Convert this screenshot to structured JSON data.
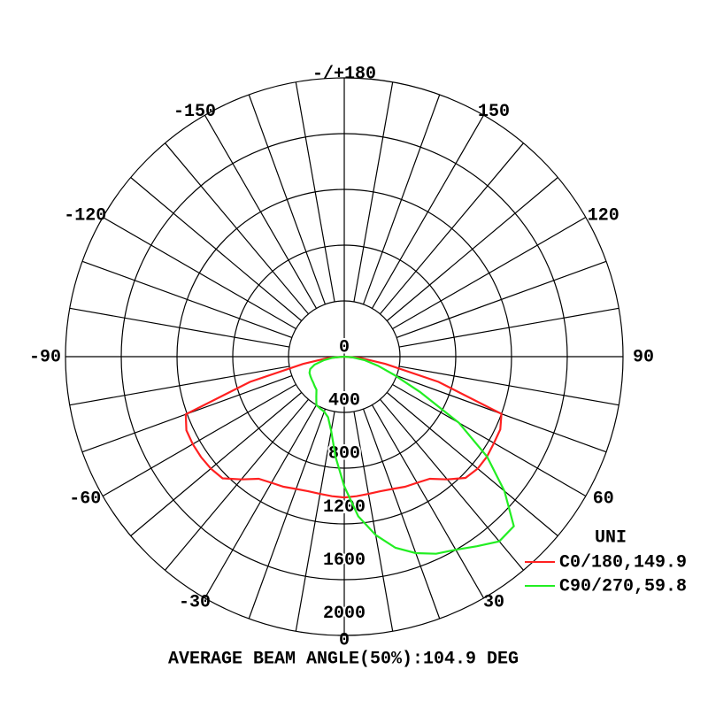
{
  "chart_data": {
    "type": "polar",
    "footer": "AVERAGE BEAM ANGLE(50%):104.9 DEG",
    "legend_title": "UNI",
    "rlim": [
      0,
      2000
    ],
    "rticks": [
      0,
      400,
      800,
      1200,
      1600,
      2000
    ],
    "thetaticks": [
      0,
      30,
      60,
      90,
      120,
      150,
      {
        "value": 180,
        "label": "-/+180"
      },
      -150,
      -120,
      -90,
      -60,
      -30
    ],
    "theta": [
      -90,
      -85,
      -80,
      -75,
      -70,
      -65,
      -60,
      -55,
      -50,
      -45,
      -40,
      -35,
      -30,
      -25,
      -20,
      -15,
      -10,
      -5,
      0,
      5,
      10,
      15,
      20,
      25,
      30,
      35,
      40,
      45,
      50,
      55,
      60,
      65,
      70,
      75,
      80,
      85,
      90
    ],
    "series": [
      {
        "name": "C0/180,149.9",
        "color": "#ff2020",
        "values": [
          0,
          120,
          300,
          700,
          1210,
          1250,
          1255,
          1255,
          1250,
          1235,
          1150,
          1070,
          1045,
          1030,
          1010,
          1000,
          1000,
          1005,
          1010,
          1005,
          1000,
          1000,
          1010,
          1030,
          1045,
          1070,
          1150,
          1230,
          1250,
          1250,
          1240,
          1235,
          1200,
          700,
          300,
          120,
          0
        ]
      },
      {
        "name": "C90/270,59.8",
        "color": "#22ee22",
        "values": [
          0,
          80,
          150,
          220,
          260,
          275,
          280,
          285,
          290,
          300,
          310,
          350,
          400,
          410,
          420,
          450,
          540,
          720,
          930,
          1150,
          1300,
          1420,
          1500,
          1560,
          1600,
          1660,
          1730,
          1720,
          1500,
          1250,
          950,
          600,
          380,
          250,
          150,
          60,
          0
        ]
      }
    ]
  }
}
